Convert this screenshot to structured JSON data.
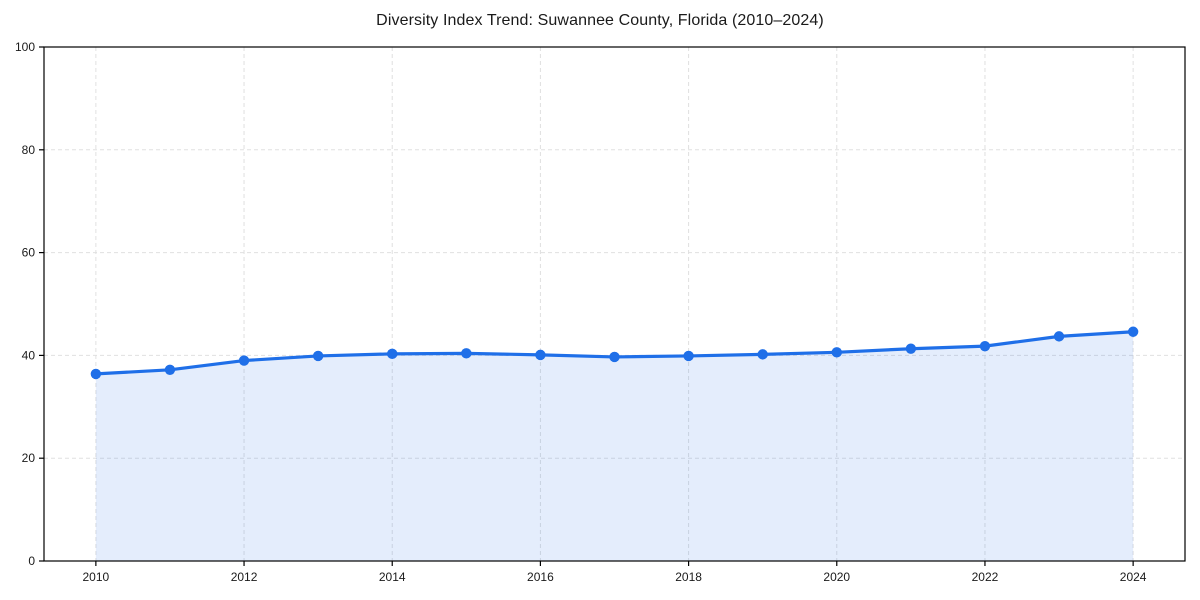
{
  "chart_data": {
    "type": "area",
    "title": "Diversity Index Trend: Suwannee County, Florida (2010–2024)",
    "x": [
      2010,
      2011,
      2012,
      2013,
      2014,
      2015,
      2016,
      2017,
      2018,
      2019,
      2020,
      2021,
      2022,
      2023,
      2024
    ],
    "values": [
      36.4,
      37.2,
      39.0,
      39.9,
      40.3,
      40.4,
      40.1,
      39.7,
      39.9,
      40.2,
      40.6,
      41.3,
      41.8,
      43.7,
      44.6
    ],
    "xlabel": "",
    "ylabel": "",
    "xlim": [
      2009.3,
      2024.7
    ],
    "ylim": [
      0,
      100
    ],
    "x_ticks": [
      "2010",
      "2012",
      "2014",
      "2016",
      "2018",
      "2020",
      "2022",
      "2024"
    ],
    "y_ticks": [
      "0",
      "20",
      "40",
      "60",
      "80",
      "100"
    ],
    "grid": true,
    "grid_style": "dashed",
    "legend_position": "none",
    "marker": "circle",
    "colors": {
      "line": "#1f6fe8",
      "marker": "#1f6fe8",
      "fill": "rgba(31, 111, 232, 0.12)",
      "grid": "#e0e0e0",
      "axis": "#000000",
      "tick_text": "#1a1a1a",
      "background": "#ffffff"
    }
  }
}
